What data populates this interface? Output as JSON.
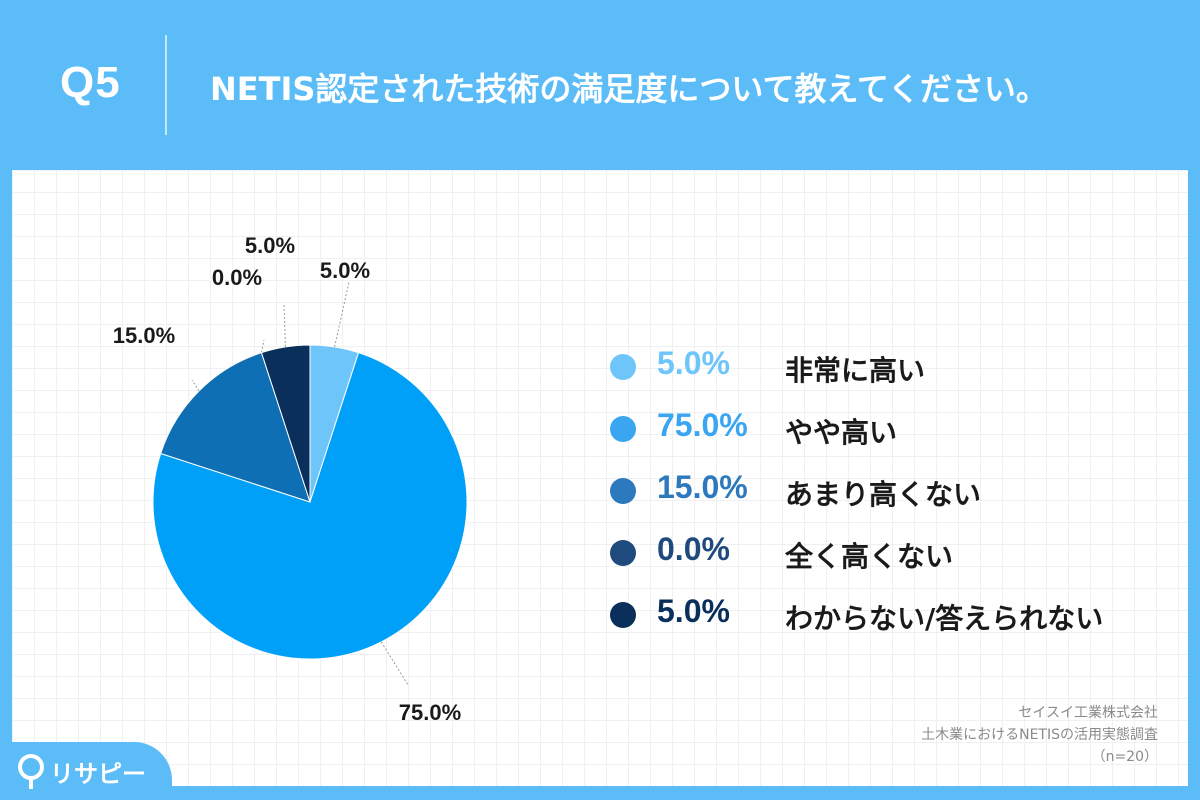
{
  "header": {
    "question_number": "Q5",
    "title": "NETIS認定された技術の満足度について教えてください。"
  },
  "chart_data": {
    "type": "pie",
    "categories": [
      "非常に高い",
      "やや高い",
      "あまり高くない",
      "全く高くない",
      "わからない/答えられない"
    ],
    "values": [
      5.0,
      75.0,
      15.0,
      0.0,
      5.0
    ],
    "value_labels": [
      "5.0%",
      "75.0%",
      "15.0%",
      "0.0%",
      "5.0%"
    ],
    "colors": [
      "#6ec5fa",
      "#00a0f8",
      "#0f6fb4",
      "#1f4a7d",
      "#0a2f5a"
    ],
    "legend_colors": [
      "#6ec5fa",
      "#3aa6f2",
      "#2d79bd",
      "#1f4a7d",
      "#0a2f5a"
    ],
    "unit": "%",
    "legend_position": "right"
  },
  "footer": {
    "company": "セイスイ工業株式会社",
    "survey": "土木業におけるNETISの活用実態調査",
    "sample": "（n=20）"
  },
  "logo": {
    "text": "リサピー"
  }
}
